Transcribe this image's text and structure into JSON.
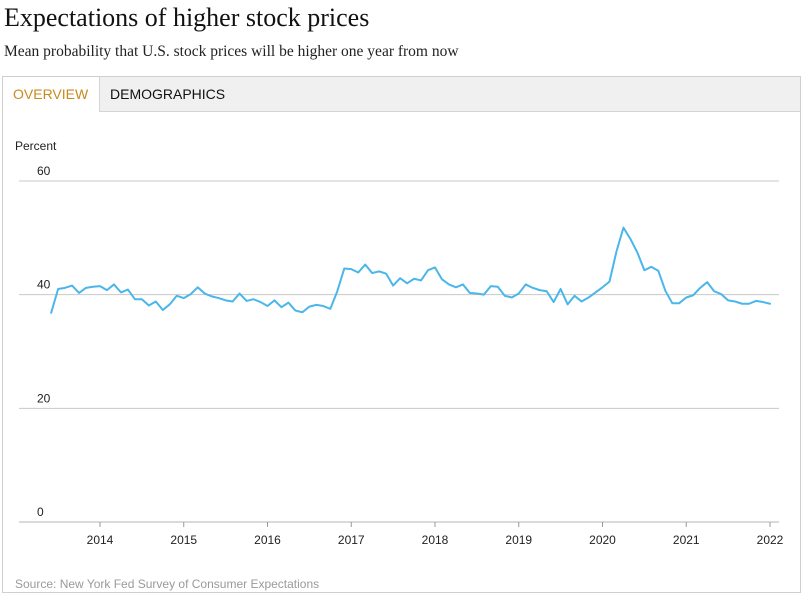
{
  "title": "Expectations of higher stock prices",
  "subtitle": "Mean probability that U.S. stock prices will be higher one year from now",
  "tabs": [
    {
      "label": "OVERVIEW",
      "active": true
    },
    {
      "label": "DEMOGRAPHICS",
      "active": false
    }
  ],
  "source": "Source: New York Fed Survey of Consumer Expectations",
  "colors": {
    "line": "#4ab6ea",
    "active_tab": "#c88a1e",
    "grid": "#c8c8c8"
  },
  "chart_data": {
    "type": "line",
    "title": "",
    "xlabel": "",
    "ylabel": "Percent",
    "ylim": [
      0,
      60
    ],
    "yticks": [
      "0",
      "20",
      "40",
      "60"
    ],
    "xlim": [
      "2013-06",
      "2022-02"
    ],
    "xticks": [
      "2014",
      "2015",
      "2016",
      "2017",
      "2018",
      "2019",
      "2020",
      "2021",
      "2022"
    ],
    "grid": "horizontal",
    "series": [
      {
        "name": "",
        "x": [
          "2013-06",
          "2013-07",
          "2013-08",
          "2013-09",
          "2013-10",
          "2013-11",
          "2013-12",
          "2014-01",
          "2014-02",
          "2014-03",
          "2014-04",
          "2014-05",
          "2014-06",
          "2014-07",
          "2014-08",
          "2014-09",
          "2014-10",
          "2014-11",
          "2014-12",
          "2015-01",
          "2015-02",
          "2015-03",
          "2015-04",
          "2015-05",
          "2015-06",
          "2015-07",
          "2015-08",
          "2015-09",
          "2015-10",
          "2015-11",
          "2015-12",
          "2016-01",
          "2016-02",
          "2016-03",
          "2016-04",
          "2016-05",
          "2016-06",
          "2016-07",
          "2016-08",
          "2016-09",
          "2016-10",
          "2016-11",
          "2016-12",
          "2017-01",
          "2017-02",
          "2017-03",
          "2017-04",
          "2017-05",
          "2017-06",
          "2017-07",
          "2017-08",
          "2017-09",
          "2017-10",
          "2017-11",
          "2017-12",
          "2018-01",
          "2018-02",
          "2018-03",
          "2018-04",
          "2018-05",
          "2018-06",
          "2018-07",
          "2018-08",
          "2018-09",
          "2018-10",
          "2018-11",
          "2018-12",
          "2019-01",
          "2019-02",
          "2019-03",
          "2019-04",
          "2019-05",
          "2019-06",
          "2019-07",
          "2019-08",
          "2019-09",
          "2019-10",
          "2019-11",
          "2019-12",
          "2020-01",
          "2020-02",
          "2020-03",
          "2020-04",
          "2020-05",
          "2020-06",
          "2020-07",
          "2020-08",
          "2020-09",
          "2020-10",
          "2020-11",
          "2020-12",
          "2021-01",
          "2021-02",
          "2021-03",
          "2021-04",
          "2021-05",
          "2021-06",
          "2021-07",
          "2021-08",
          "2021-09",
          "2021-10",
          "2021-11",
          "2021-12",
          "2022-01"
        ],
        "values": [
          36.8,
          41.0,
          41.2,
          41.6,
          40.3,
          41.2,
          41.4,
          41.5,
          40.8,
          41.8,
          40.4,
          40.9,
          39.2,
          39.2,
          38.1,
          38.8,
          37.3,
          38.3,
          39.8,
          39.4,
          40.1,
          41.3,
          40.2,
          39.7,
          39.4,
          39.0,
          38.8,
          40.2,
          38.9,
          39.2,
          38.7,
          38.0,
          39.0,
          37.8,
          38.6,
          37.2,
          36.9,
          37.9,
          38.2,
          38.0,
          37.5,
          40.6,
          44.6,
          44.5,
          43.9,
          45.3,
          43.8,
          44.1,
          43.7,
          41.6,
          42.9,
          42.0,
          42.8,
          42.5,
          44.3,
          44.8,
          42.7,
          41.8,
          41.3,
          41.8,
          40.3,
          40.2,
          40.0,
          41.5,
          41.4,
          39.8,
          39.5,
          40.2,
          41.8,
          41.2,
          40.8,
          40.6,
          38.7,
          41.0,
          38.3,
          39.8,
          38.8,
          39.5,
          40.4,
          41.3,
          42.3,
          47.6,
          51.8,
          49.8,
          47.4,
          44.3,
          44.9,
          44.2,
          40.7,
          38.5,
          38.5,
          39.5,
          39.9,
          41.2,
          42.2,
          40.6,
          40.1,
          39.0,
          38.8,
          38.4,
          38.4,
          38.9,
          38.7,
          38.4
        ]
      }
    ]
  }
}
